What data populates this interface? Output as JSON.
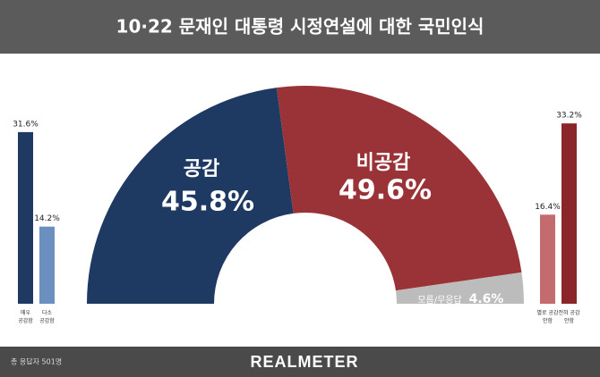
{
  "header": {
    "title": "10·22 문재인 대통령 시정연설에 대한 국민인식"
  },
  "footer": {
    "note": "총 응답자 501명",
    "logo": "REALMETER"
  },
  "chart_data": [
    {
      "type": "half-donut",
      "categories": [
        "공감",
        "비공감",
        "모름/무응답"
      ],
      "values": [
        45.8,
        49.6,
        4.6
      ],
      "value_labels": [
        "45.8%",
        "49.6%",
        "4.6%"
      ],
      "colors": [
        "#1f3a62",
        "#9a3337",
        "#bcbcbc"
      ]
    },
    {
      "type": "bar",
      "categories": [
        "매우 공감함",
        "다소 공감함"
      ],
      "values": [
        31.6,
        14.2
      ],
      "value_labels": [
        "31.6%",
        "14.2%"
      ],
      "colors": [
        "#1f3a62",
        "#6b8fbf"
      ]
    },
    {
      "type": "bar",
      "categories": [
        "별로 공감 안함",
        "전혀 공감 안함"
      ],
      "values": [
        16.4,
        33.2
      ],
      "value_labels": [
        "16.4%",
        "33.2%"
      ],
      "colors": [
        "#c46b70",
        "#8a2529"
      ]
    }
  ]
}
